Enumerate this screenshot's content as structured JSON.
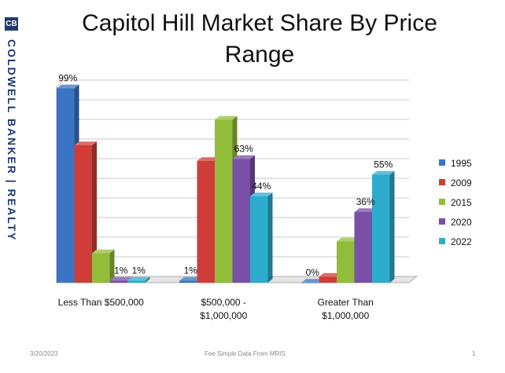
{
  "brand": {
    "logo": "CB",
    "name": "COLDWELL BANKER | REALTY"
  },
  "footer": {
    "date": "3/20/2023",
    "source": "Fee Simple Data From MRIS",
    "page": "1"
  },
  "colors": {
    "1995": "#3a74c4",
    "2009": "#cf3d38",
    "2015": "#92bd3a",
    "2020": "#7a4fa8",
    "2022": "#2eaccd"
  },
  "chart_data": {
    "type": "bar",
    "title": "Capitol Hill Market Share By Price Range",
    "title_lines": [
      "Capitol Hill Market Share By Price",
      "Range"
    ],
    "categories": [
      "Less Than $500,000",
      "$500,000 - $1,000,000",
      "Greater Than $1,000,000"
    ],
    "category_lines": [
      [
        "Less Than $500,000"
      ],
      [
        "$500,000 -",
        "$1,000,000"
      ],
      [
        "Greater Than",
        "$1,000,000"
      ]
    ],
    "series": [
      {
        "name": "1995",
        "values": [
          99,
          1,
          0
        ]
      },
      {
        "name": "2009",
        "values": [
          70,
          62,
          3
        ]
      },
      {
        "name": "2015",
        "values": [
          15,
          83,
          21
        ]
      },
      {
        "name": "2020",
        "values": [
          1,
          63,
          36
        ]
      },
      {
        "name": "2022",
        "values": [
          1,
          44,
          55
        ]
      }
    ],
    "data_labels": [
      {
        "series": "1995",
        "category": 0,
        "text": "99%"
      },
      {
        "series": "2020",
        "category": 0,
        "text": "1%"
      },
      {
        "series": "2022",
        "category": 0,
        "text": "1%"
      },
      {
        "series": "1995",
        "category": 1,
        "text": "1%"
      },
      {
        "series": "2020",
        "category": 1,
        "text": "63%"
      },
      {
        "series": "2022",
        "category": 1,
        "text": "44%"
      },
      {
        "series": "1995",
        "category": 2,
        "text": "0%"
      },
      {
        "series": "2020",
        "category": 2,
        "text": "36%"
      },
      {
        "series": "2022",
        "category": 2,
        "text": "55%"
      }
    ],
    "ylim": [
      0,
      100
    ],
    "grid": true,
    "legend_position": "right",
    "style": "3d-column"
  }
}
